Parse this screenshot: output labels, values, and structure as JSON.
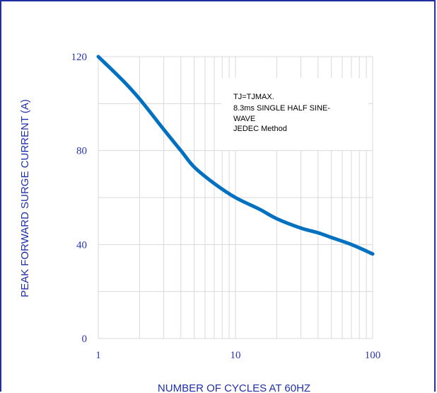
{
  "chart_data": {
    "type": "line",
    "title": "",
    "xlabel": "NUMBER OF CYCLES AT 60HZ",
    "ylabel": "PEAK FORWARD SURGE CURRENT (A)",
    "x_scale": "log",
    "xlim": [
      1,
      100
    ],
    "ylim": [
      0,
      120
    ],
    "x_ticks": [
      "1",
      "10",
      "100"
    ],
    "y_ticks": [
      "0",
      "40",
      "80",
      "120"
    ],
    "grid": true,
    "series": [
      {
        "color": "#0070c0",
        "x": [
          1,
          1.5,
          2,
          3,
          4,
          5,
          7,
          10,
          15,
          20,
          30,
          40,
          50,
          70,
          100
        ],
        "y": [
          120,
          110,
          102,
          89,
          80,
          73,
          66,
          60,
          55,
          51,
          47,
          45,
          43,
          40,
          36
        ]
      }
    ],
    "annotation": [
      "TJ=TJMAX.",
      "8.3ms SINGLE HALF SINE-",
      "WAVE",
      "JEDEC Method"
    ]
  }
}
